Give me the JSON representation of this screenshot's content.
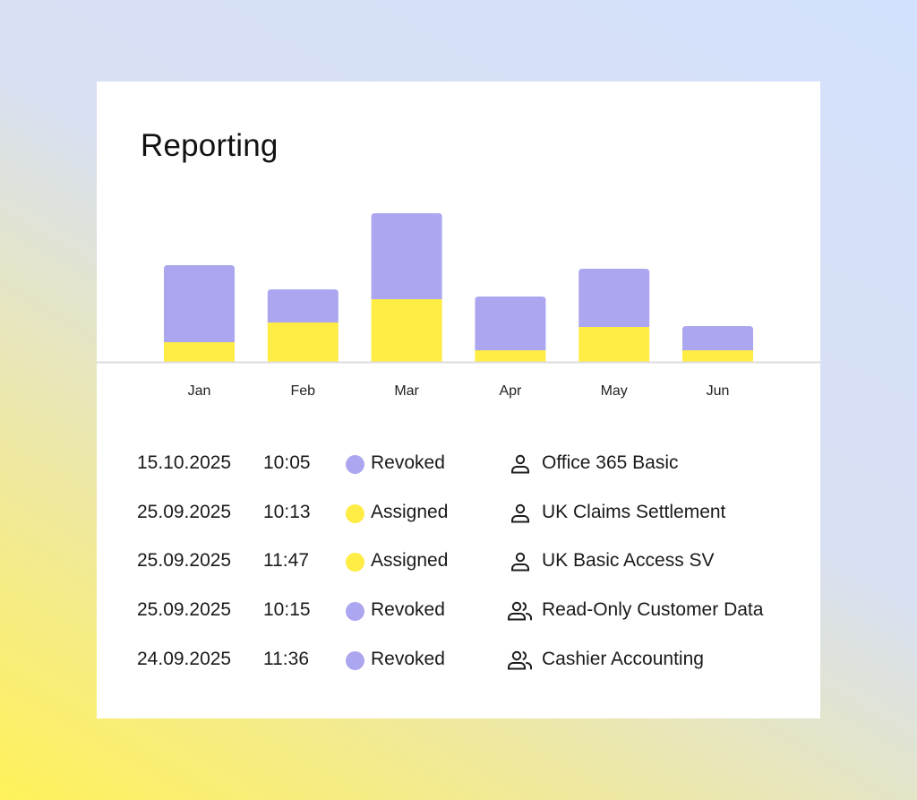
{
  "card": {
    "title": "Reporting"
  },
  "chart_data": {
    "type": "bar",
    "stacked": true,
    "categories": [
      "Jan",
      "Feb",
      "Mar",
      "Apr",
      "May",
      "Jun"
    ],
    "series": [
      {
        "key": "assigned",
        "color": "#ffec45",
        "values": [
          22,
          44,
          70,
          13,
          39,
          13
        ]
      },
      {
        "key": "revoked",
        "color": "#aca6f0",
        "values": [
          86,
          37,
          96,
          60,
          65,
          27
        ]
      }
    ],
    "ylim": [
      0,
      170
    ],
    "grid": false,
    "legend": "none"
  },
  "statuses": {
    "Revoked": "#aca6f0",
    "Assigned": "#ffec45"
  },
  "rows": [
    {
      "date": "15.10.2025",
      "time": "10:05",
      "status": "Revoked",
      "icon": "user-icon",
      "role": "Office 365 Basic"
    },
    {
      "date": "25.09.2025",
      "time": "10:13",
      "status": "Assigned",
      "icon": "user-icon",
      "role": "UK Claims Settlement"
    },
    {
      "date": "25.09.2025",
      "time": "11:47",
      "status": "Assigned",
      "icon": "user-icon",
      "role": "UK Basic Access SV"
    },
    {
      "date": "25.09.2025",
      "time": "10:15",
      "status": "Revoked",
      "icon": "users-icon",
      "role": "Read-Only Customer Data"
    },
    {
      "date": "24.09.2025",
      "time": "11:36",
      "status": "Revoked",
      "icon": "users-icon",
      "role": "Cashier Accounting"
    }
  ]
}
